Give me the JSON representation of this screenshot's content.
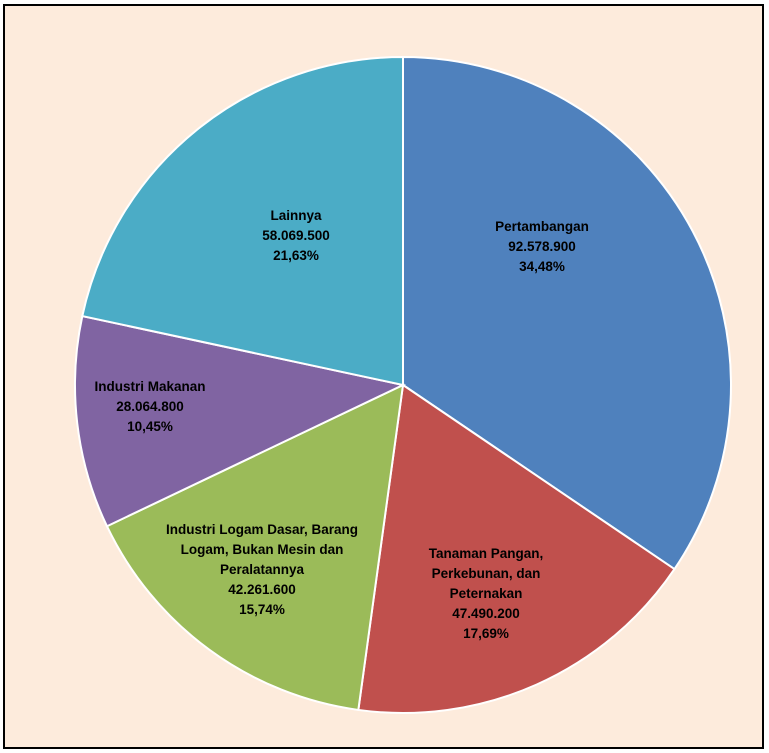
{
  "chart_data": {
    "type": "pie",
    "start_angle": "12 o'clock",
    "direction": "clockwise",
    "legend": "none",
    "slices": [
      {
        "name_lines": [
          "Pertambangan"
        ],
        "value": 92578900,
        "value_label": "92.578.900",
        "percent": 34.48,
        "percent_label": "34,48%",
        "color": "#4f81bd"
      },
      {
        "name_lines": [
          "Tanaman Pangan,",
          "Perkebunan, dan",
          "Peternakan"
        ],
        "value": 47490200,
        "value_label": "47.490.200",
        "percent": 17.69,
        "percent_label": "17,69%",
        "color": "#c0504d"
      },
      {
        "name_lines": [
          "Industri Logam Dasar, Barang",
          "Logam, Bukan Mesin dan",
          "Peralatannya"
        ],
        "value": 42261600,
        "value_label": "42.261.600",
        "percent": 15.74,
        "percent_label": "15,74%",
        "color": "#9bbb59"
      },
      {
        "name_lines": [
          "Industri Makanan"
        ],
        "value": 28064800,
        "value_label": "28.064.800",
        "percent": 10.45,
        "percent_label": "10,45%",
        "color": "#8064a2"
      },
      {
        "name_lines": [
          "Lainnya"
        ],
        "value": 58069500,
        "value_label": "58.069.500",
        "percent": 21.63,
        "percent_label": "21,63%",
        "color": "#4bacc6"
      }
    ]
  }
}
